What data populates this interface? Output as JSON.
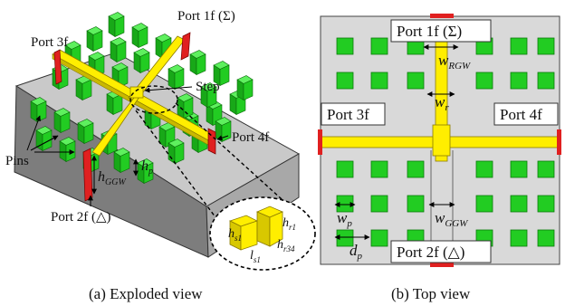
{
  "panel_a": {
    "caption": "(a) Exploded view",
    "labels": {
      "port_3f": "Port 3f",
      "port_1f": "Port 1f (Σ)",
      "port_4f": "Port 4f",
      "port_2f": "Port 2f (△)",
      "step": "Step",
      "pins": "Pins",
      "h_ggw": "h",
      "h_ggw_sub": "GGW",
      "h_p": "h",
      "h_p_sub": "p",
      "h_s1": "h",
      "h_s1_sub": "s1",
      "l_s1": "l",
      "l_s1_sub": "s1",
      "h_r1": "h",
      "h_r1_sub": "r1",
      "h_r34": "h",
      "h_r34_sub": "r34"
    }
  },
  "panel_b": {
    "caption": "(b) Top view",
    "labels": {
      "port_1f": "Port 1f (Σ)",
      "port_3f": "Port 3f",
      "port_4f": "Port 4f",
      "port_2f": "Port 2f (△)",
      "w_rgw": "w",
      "w_rgw_sub": "RGW",
      "w_r": "w",
      "w_r_sub": "r",
      "w_ggw": "w",
      "w_ggw_sub": "GGW",
      "w_p": "w",
      "w_p_sub": "p",
      "d_p": "d",
      "d_p_sub": "p"
    }
  },
  "colors": {
    "pin_green": "#22cc22",
    "ridge_yellow": "#ffee00",
    "port_red": "#e02020",
    "plate_gray": "#c9c9c9",
    "side_dark": "#8a8a8a",
    "panel_bg": "#d9d9d9"
  }
}
